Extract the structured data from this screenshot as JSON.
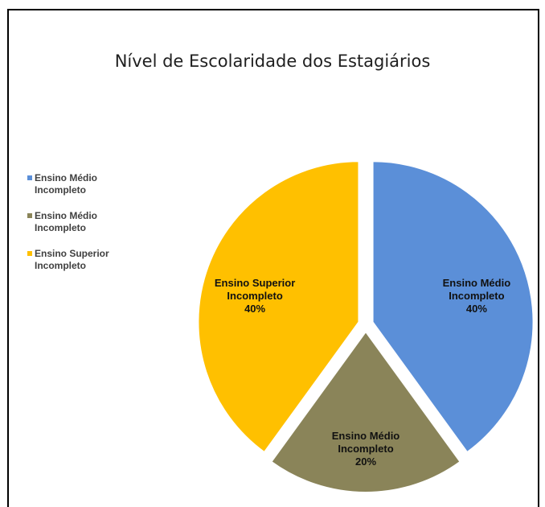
{
  "chart_data": {
    "type": "pie",
    "title": "Nível de Escolaridade dos Estagiários",
    "categories": [
      "Ensino Médio Incompleto",
      "Ensino Médio Incompleto",
      "Ensino Superior Incompleto"
    ],
    "values": [
      40,
      20,
      40
    ],
    "value_labels": [
      "40%",
      "20%",
      "40%"
    ],
    "colors": [
      "#5b8fd8",
      "#8a8459",
      "#ffc000"
    ],
    "legend": "left"
  }
}
